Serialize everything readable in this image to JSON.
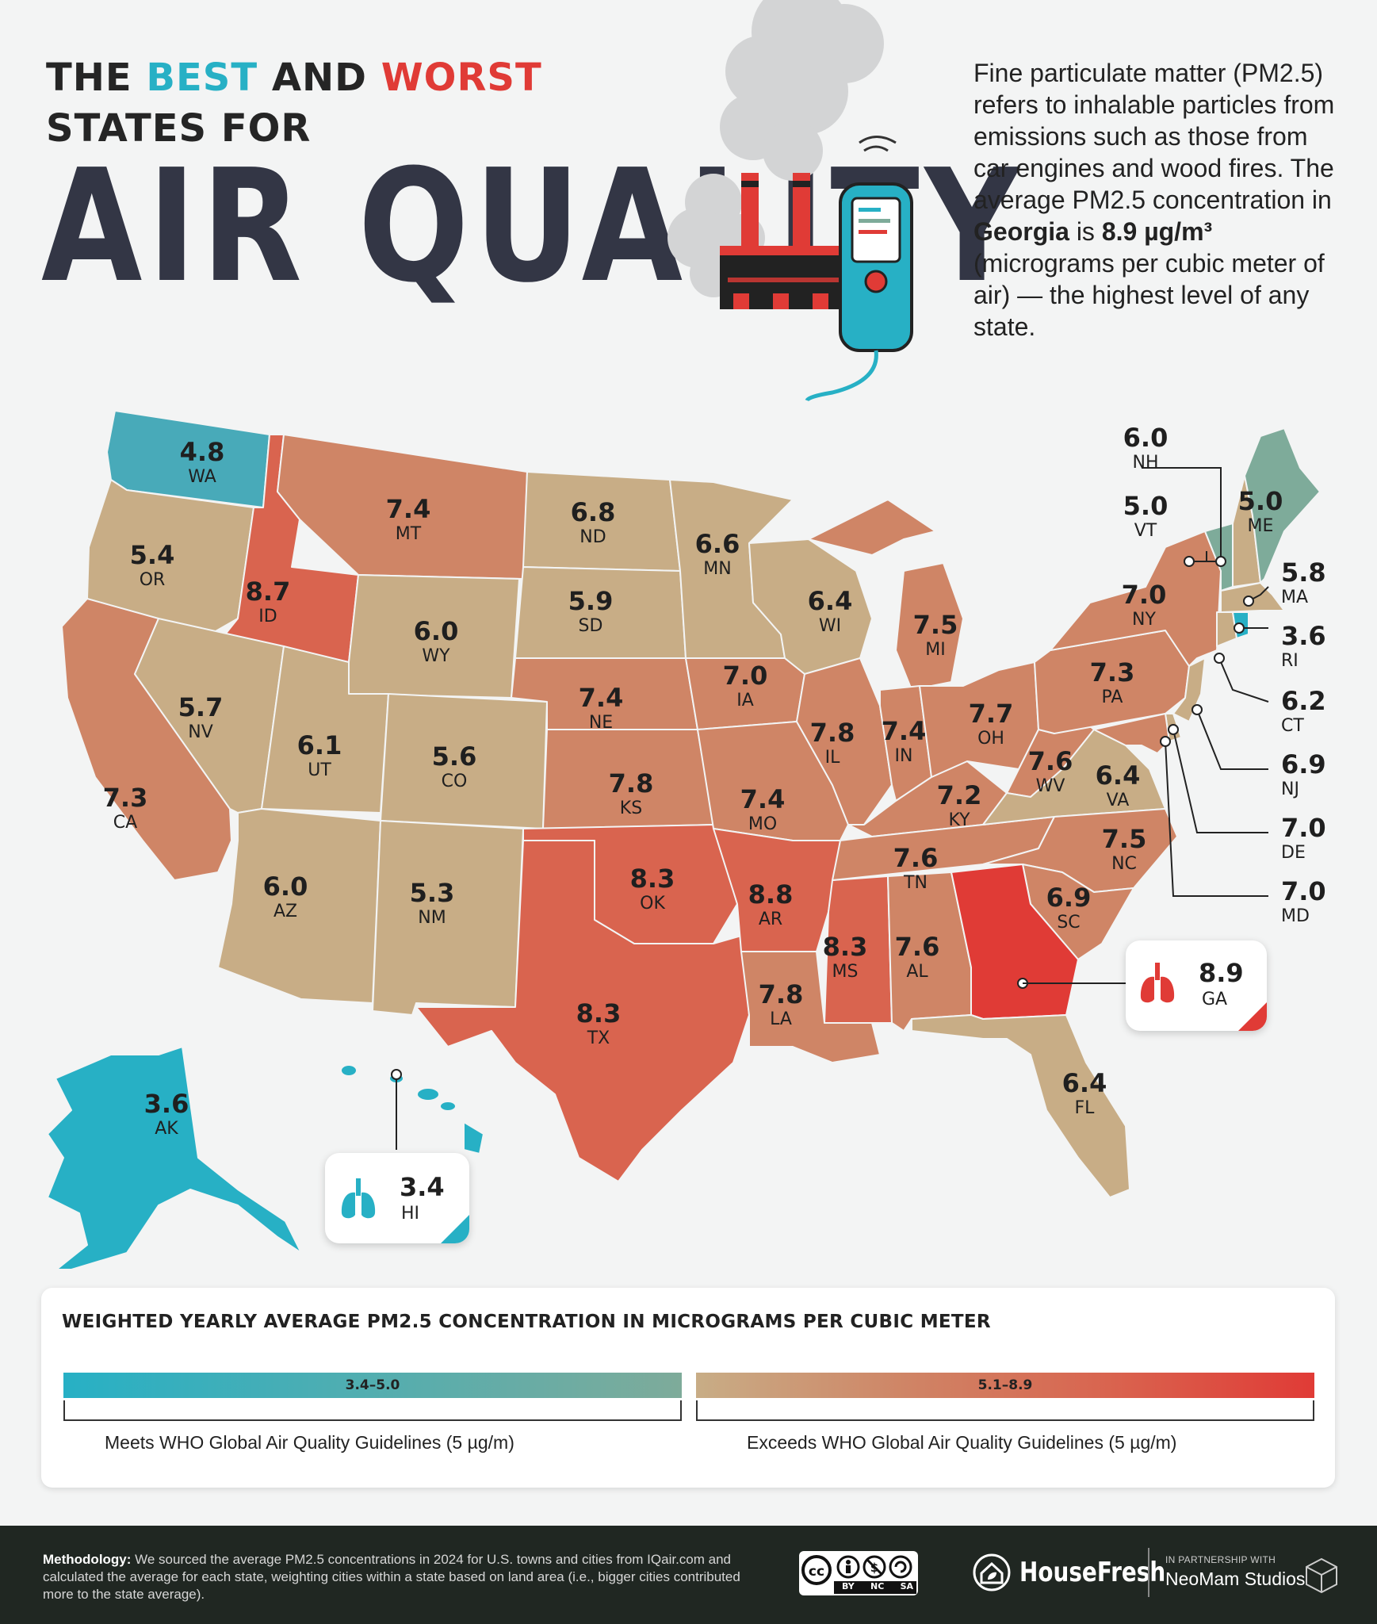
{
  "title": {
    "line1_a": "THE ",
    "line1_best": "BEST",
    "line1_and": " AND ",
    "line1_worst": "WORST",
    "line2": "STATES FOR",
    "big": "AIR QUALITY"
  },
  "intro": {
    "part1": "Fine particulate matter (PM2.5) refers to inhalable particles from emissions such as those from car engines and wood fires. The average PM2.5 concentration in ",
    "state": "Georgia",
    "part2": " is ",
    "value": "8.9 µg/m³",
    "part3": " (micrograms per cubic meter of air) — the highest level of any state."
  },
  "colors": {
    "teal": "#27b0c5",
    "teal_green": "#7eab9a",
    "tan": "#c8ad86",
    "salmon": "#cf8566",
    "orange_red": "#d9644f",
    "red": "#e03b36"
  },
  "map_states": [
    {
      "code": "WA",
      "value": "4.8"
    },
    {
      "code": "OR",
      "value": "5.4"
    },
    {
      "code": "CA",
      "value": "7.3"
    },
    {
      "code": "ID",
      "value": "8.7"
    },
    {
      "code": "MT",
      "value": "7.4"
    },
    {
      "code": "WY",
      "value": "6.0"
    },
    {
      "code": "NV",
      "value": "5.7"
    },
    {
      "code": "UT",
      "value": "6.1"
    },
    {
      "code": "CO",
      "value": "5.6"
    },
    {
      "code": "AZ",
      "value": "6.0"
    },
    {
      "code": "NM",
      "value": "5.3"
    },
    {
      "code": "ND",
      "value": "6.8"
    },
    {
      "code": "SD",
      "value": "5.9"
    },
    {
      "code": "NE",
      "value": "7.4"
    },
    {
      "code": "KS",
      "value": "7.8"
    },
    {
      "code": "OK",
      "value": "8.3"
    },
    {
      "code": "TX",
      "value": "8.3"
    },
    {
      "code": "MN",
      "value": "6.6"
    },
    {
      "code": "IA",
      "value": "7.0"
    },
    {
      "code": "MO",
      "value": "7.4"
    },
    {
      "code": "AR",
      "value": "8.8"
    },
    {
      "code": "LA",
      "value": "7.8"
    },
    {
      "code": "WI",
      "value": "6.4"
    },
    {
      "code": "IL",
      "value": "7.8"
    },
    {
      "code": "MS",
      "value": "8.3"
    },
    {
      "code": "MI",
      "value": "7.5"
    },
    {
      "code": "IN",
      "value": "7.4"
    },
    {
      "code": "KY",
      "value": "7.2"
    },
    {
      "code": "TN",
      "value": "7.6"
    },
    {
      "code": "AL",
      "value": "7.6"
    },
    {
      "code": "OH",
      "value": "7.7"
    },
    {
      "code": "WV",
      "value": "7.6"
    },
    {
      "code": "VA",
      "value": "6.4"
    },
    {
      "code": "NC",
      "value": "7.5"
    },
    {
      "code": "SC",
      "value": "6.9"
    },
    {
      "code": "GA",
      "value": "8.9"
    },
    {
      "code": "FL",
      "value": "6.4"
    },
    {
      "code": "PA",
      "value": "7.3"
    },
    {
      "code": "NY",
      "value": "7.0"
    },
    {
      "code": "ME",
      "value": "5.0"
    },
    {
      "code": "NH",
      "value": "6.0"
    },
    {
      "code": "VT",
      "value": "5.0"
    },
    {
      "code": "MA",
      "value": "5.8"
    },
    {
      "code": "RI",
      "value": "3.6"
    },
    {
      "code": "CT",
      "value": "6.2"
    },
    {
      "code": "NJ",
      "value": "6.9"
    },
    {
      "code": "DE",
      "value": "7.0"
    },
    {
      "code": "MD",
      "value": "7.0"
    },
    {
      "code": "AK",
      "value": "3.6"
    },
    {
      "code": "HI",
      "value": "3.4"
    }
  ],
  "legend": {
    "title": "WEIGHTED YEARLY AVERAGE PM2.5 CONCENTRATION IN MICROGRAMS PER CUBIC METER",
    "range_low": "3.4–5.0",
    "range_high": "5.1–8.9",
    "note_low": "Meets WHO Global Air Quality Guidelines (5 µg/m)",
    "note_high": "Exceeds WHO Global Air Quality Guidelines (5 µg/m)"
  },
  "footer": {
    "method_label": "Methodology:",
    "method_text": " We sourced the average PM2.5 concentrations in 2024 for U.S. towns and cities from IQair.com and calculated the average for each state, weighting cities within a state based on land area (i.e., bigger cities contributed more to the state average).",
    "cc_by": "BY",
    "cc_nc": "NC",
    "cc_sa": "SA",
    "brand": "HouseFresh",
    "partner_small": "IN PARTNERSHIP WITH",
    "partner": "NeoMam Studios"
  },
  "icons": [
    "factory-icon",
    "smoke-icon",
    "air-quality-monitor-icon",
    "lungs-icon",
    "house-leaf-icon",
    "creative-commons-icon",
    "neomam-cube-icon"
  ]
}
